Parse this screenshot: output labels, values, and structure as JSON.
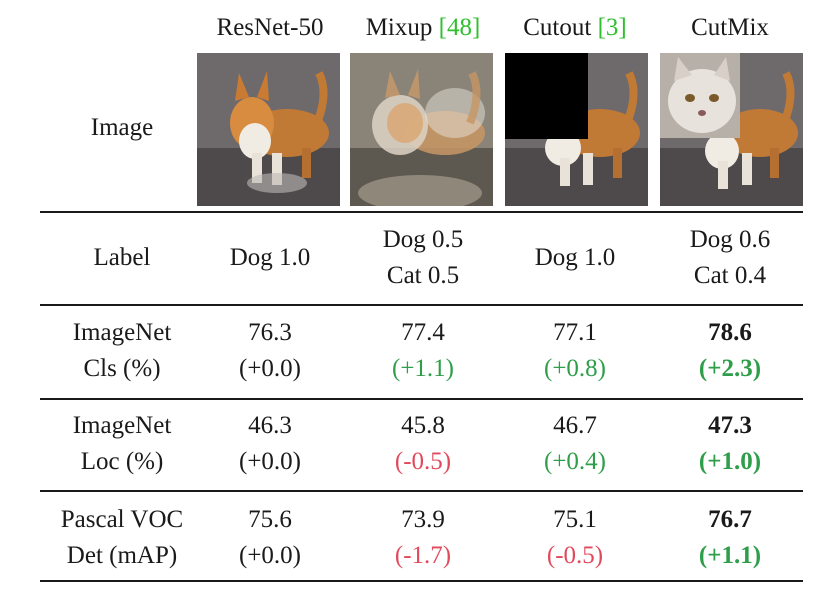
{
  "header": {
    "row_label": "Image",
    "columns": [
      {
        "name": "ResNet-50",
        "ref": ""
      },
      {
        "name": "Mixup ",
        "ref": "[48]"
      },
      {
        "name": "Cutout ",
        "ref": "[3]"
      },
      {
        "name": "CutMix",
        "ref": ""
      }
    ]
  },
  "labels_row": {
    "title": "Label",
    "cells": [
      {
        "line1": "Dog 1.0",
        "line2": ""
      },
      {
        "line1": "Dog 0.5",
        "line2": "Cat 0.5"
      },
      {
        "line1": "Dog 1.0",
        "line2": ""
      },
      {
        "line1": "Dog 0.6",
        "line2": "Cat 0.4"
      }
    ]
  },
  "metrics": [
    {
      "title1": "ImageNet",
      "title2": "Cls (%)",
      "cells": [
        {
          "value": "76.3",
          "delta": "(+0.0)",
          "delta_kind": "neutral",
          "best": false
        },
        {
          "value": "77.4",
          "delta": "(+1.1)",
          "delta_kind": "green",
          "best": false
        },
        {
          "value": "77.1",
          "delta": "(+0.8)",
          "delta_kind": "green",
          "best": false
        },
        {
          "value": "78.6",
          "delta": "(+2.3)",
          "delta_kind": "green",
          "best": true
        }
      ]
    },
    {
      "title1": "ImageNet",
      "title2": "Loc (%)",
      "cells": [
        {
          "value": "46.3",
          "delta": "(+0.0)",
          "delta_kind": "neutral",
          "best": false
        },
        {
          "value": "45.8",
          "delta": "(-0.5)",
          "delta_kind": "red",
          "best": false
        },
        {
          "value": "46.7",
          "delta": "(+0.4)",
          "delta_kind": "green",
          "best": false
        },
        {
          "value": "47.3",
          "delta": "(+1.0)",
          "delta_kind": "green",
          "best": true
        }
      ]
    },
    {
      "title1": "Pascal VOC",
      "title2": "Det (mAP)",
      "cells": [
        {
          "value": "75.6",
          "delta": "(+0.0)",
          "delta_kind": "neutral",
          "best": false
        },
        {
          "value": "73.9",
          "delta": "(-1.7)",
          "delta_kind": "red",
          "best": false
        },
        {
          "value": "75.1",
          "delta": "(-0.5)",
          "delta_kind": "red",
          "best": false
        },
        {
          "value": "76.7",
          "delta": "(+1.1)",
          "delta_kind": "green",
          "best": true
        }
      ]
    }
  ],
  "colors": {
    "green": "#2e9e4a",
    "red": "#e04a5c",
    "ref": "#2fbf2f"
  }
}
